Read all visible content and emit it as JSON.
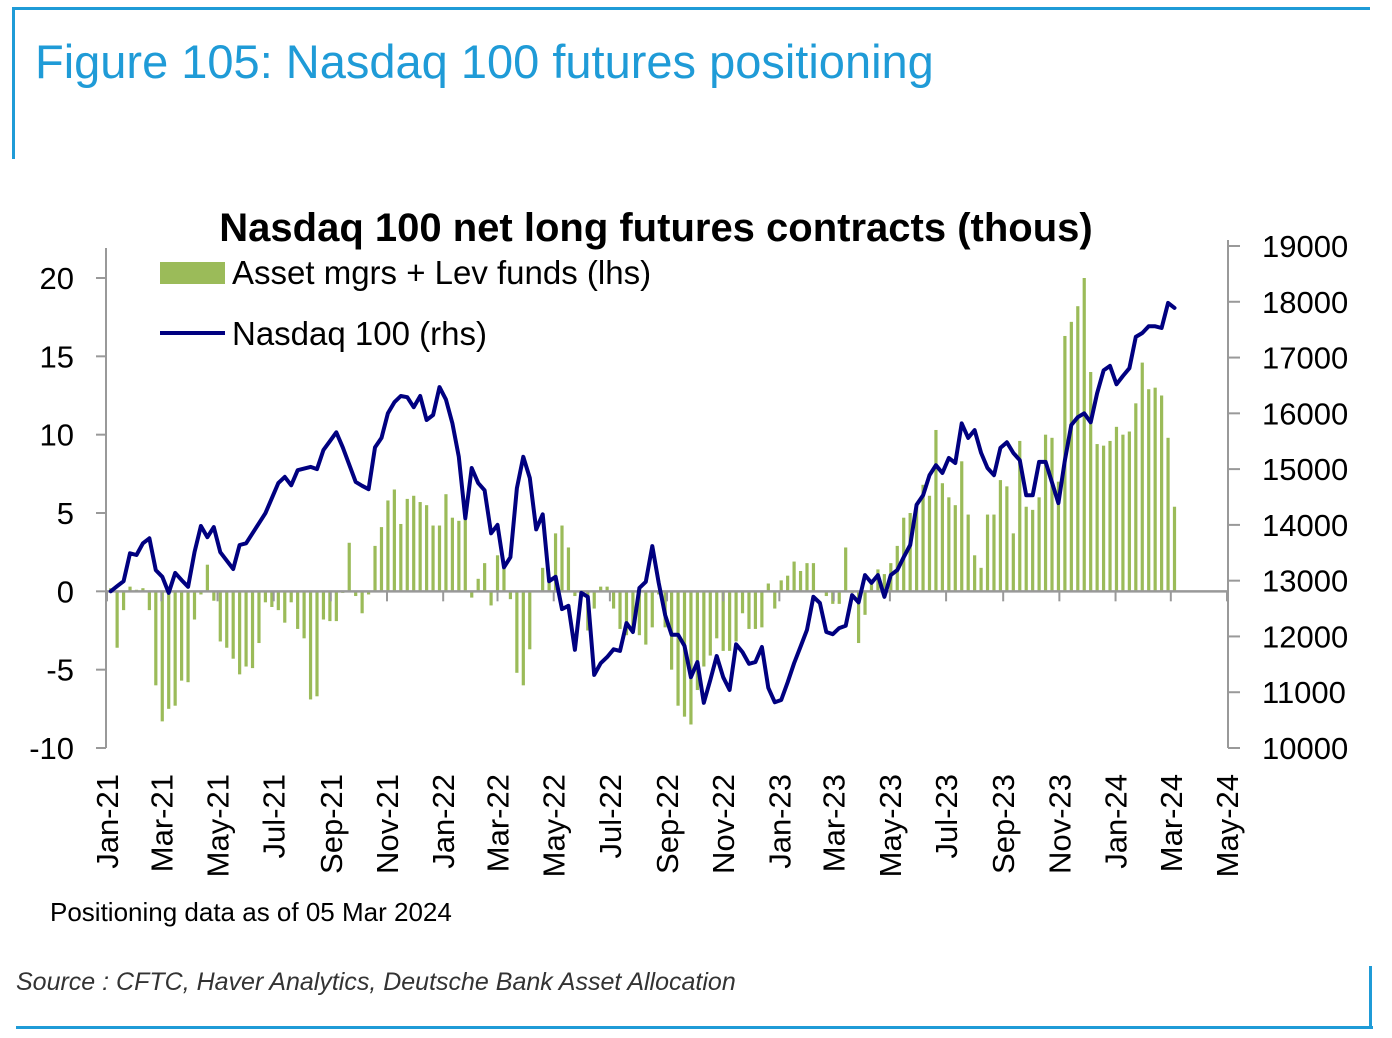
{
  "figure_title": "Figure 105: Nasdaq 100 futures positioning",
  "source": "Source : CFTC, Haver Analytics, Deutsche Bank Asset Allocation",
  "footnote": "Positioning data as of 05 Mar 2024",
  "colors": {
    "frame": "#1f9bd7",
    "bars": "#9bbb59",
    "line": "#000080",
    "axis": "#999999"
  },
  "chart_data": {
    "type": "bar+line",
    "title": "Nasdaq 100 net long futures contracts  (thous)",
    "legend_placement": "top-left",
    "grid": false,
    "y_left": {
      "ylim": [
        -10,
        20
      ],
      "ticks": [
        -10,
        -5,
        0,
        5,
        10,
        15,
        20
      ]
    },
    "y_right": {
      "ylim": [
        10000,
        19000
      ],
      "ticks": [
        10000,
        11000,
        12000,
        13000,
        14000,
        15000,
        16000,
        17000,
        18000,
        19000
      ]
    },
    "x_ticks": [
      "Jan-21",
      "Mar-21",
      "May-21",
      "Jul-21",
      "Sep-21",
      "Nov-21",
      "Jan-22",
      "Mar-22",
      "May-22",
      "Jul-22",
      "Sep-22",
      "Nov-22",
      "Jan-23",
      "Mar-23",
      "May-23",
      "Jul-23",
      "Sep-23",
      "Nov-23",
      "Jan-24",
      "Mar-24",
      "May-24"
    ],
    "x_tick_dates": [
      "2021-01-01",
      "2021-03-01",
      "2021-05-01",
      "2021-07-01",
      "2021-09-01",
      "2021-11-01",
      "2022-01-01",
      "2022-03-01",
      "2022-05-01",
      "2022-07-01",
      "2022-09-01",
      "2022-11-01",
      "2023-01-01",
      "2023-03-01",
      "2023-05-01",
      "2023-07-01",
      "2023-09-01",
      "2023-11-01",
      "2024-01-01",
      "2024-03-01",
      "2024-05-01"
    ],
    "dates": [
      "2021-01-05",
      "2021-01-12",
      "2021-01-19",
      "2021-01-26",
      "2021-02-02",
      "2021-02-09",
      "2021-02-16",
      "2021-02-23",
      "2021-03-02",
      "2021-03-09",
      "2021-03-16",
      "2021-03-23",
      "2021-03-30",
      "2021-04-06",
      "2021-04-13",
      "2021-04-20",
      "2021-04-27",
      "2021-05-04",
      "2021-05-11",
      "2021-05-18",
      "2021-05-25",
      "2021-06-01",
      "2021-06-08",
      "2021-06-15",
      "2021-06-22",
      "2021-06-29",
      "2021-07-06",
      "2021-07-13",
      "2021-07-20",
      "2021-07-27",
      "2021-08-03",
      "2021-08-10",
      "2021-08-17",
      "2021-08-24",
      "2021-08-31",
      "2021-09-07",
      "2021-09-14",
      "2021-09-21",
      "2021-09-28",
      "2021-10-05",
      "2021-10-12",
      "2021-10-19",
      "2021-10-26",
      "2021-11-02",
      "2021-11-09",
      "2021-11-16",
      "2021-11-23",
      "2021-11-30",
      "2021-12-07",
      "2021-12-14",
      "2021-12-21",
      "2021-12-28",
      "2022-01-04",
      "2022-01-11",
      "2022-01-18",
      "2022-01-25",
      "2022-02-01",
      "2022-02-08",
      "2022-02-15",
      "2022-02-22",
      "2022-03-01",
      "2022-03-08",
      "2022-03-15",
      "2022-03-22",
      "2022-03-29",
      "2022-04-05",
      "2022-04-12",
      "2022-04-19",
      "2022-04-26",
      "2022-05-03",
      "2022-05-10",
      "2022-05-17",
      "2022-05-24",
      "2022-05-31",
      "2022-06-07",
      "2022-06-14",
      "2022-06-21",
      "2022-06-28",
      "2022-07-05",
      "2022-07-12",
      "2022-07-19",
      "2022-07-26",
      "2022-08-02",
      "2022-08-09",
      "2022-08-16",
      "2022-08-23",
      "2022-08-30",
      "2022-09-06",
      "2022-09-13",
      "2022-09-20",
      "2022-09-27",
      "2022-10-04",
      "2022-10-11",
      "2022-10-18",
      "2022-10-25",
      "2022-11-01",
      "2022-11-08",
      "2022-11-15",
      "2022-11-22",
      "2022-11-29",
      "2022-12-06",
      "2022-12-13",
      "2022-12-20",
      "2022-12-27",
      "2023-01-03",
      "2023-01-10",
      "2023-01-17",
      "2023-01-24",
      "2023-01-31",
      "2023-02-07",
      "2023-02-14",
      "2023-02-21",
      "2023-02-28",
      "2023-03-07",
      "2023-03-14",
      "2023-03-21",
      "2023-03-28",
      "2023-04-04",
      "2023-04-11",
      "2023-04-18",
      "2023-04-25",
      "2023-05-02",
      "2023-05-09",
      "2023-05-16",
      "2023-05-23",
      "2023-05-30",
      "2023-06-06",
      "2023-06-13",
      "2023-06-20",
      "2023-06-27",
      "2023-07-04",
      "2023-07-11",
      "2023-07-18",
      "2023-07-25",
      "2023-08-01",
      "2023-08-08",
      "2023-08-15",
      "2023-08-22",
      "2023-08-29",
      "2023-09-05",
      "2023-09-12",
      "2023-09-19",
      "2023-09-26",
      "2023-10-03",
      "2023-10-10",
      "2023-10-17",
      "2023-10-24",
      "2023-10-31",
      "2023-11-07",
      "2023-11-14",
      "2023-11-21",
      "2023-11-28",
      "2023-12-05",
      "2023-12-12",
      "2023-12-19",
      "2023-12-26",
      "2024-01-02",
      "2024-01-09",
      "2024-01-16",
      "2024-01-23",
      "2024-01-30",
      "2024-02-06",
      "2024-02-13",
      "2024-02-20",
      "2024-02-27",
      "2024-03-05"
    ],
    "series": [
      {
        "name": "Asset mgrs + Lev funds (lhs)",
        "type": "bar",
        "axis": "left",
        "color": "#9bbb59",
        "values": [
          0.2,
          -3.6,
          -1.2,
          0.3,
          0.1,
          0.2,
          -1.2,
          -6.0,
          -8.3,
          -7.5,
          -7.3,
          -5.7,
          -5.8,
          -1.8,
          -0.2,
          1.7,
          -0.6,
          -3.2,
          -3.6,
          -4.3,
          -5.3,
          -4.8,
          -4.9,
          -3.3,
          -0.7,
          -1.0,
          -1.2,
          -2.0,
          -0.7,
          -2.4,
          -3.0,
          -6.9,
          -6.7,
          -1.8,
          -1.9,
          -1.9,
          -0.1,
          3.1,
          -0.3,
          -1.4,
          -0.2,
          2.9,
          4.1,
          5.8,
          6.5,
          4.3,
          5.9,
          6.1,
          5.7,
          5.5,
          4.2,
          4.2,
          6.2,
          4.7,
          4.5,
          4.6,
          -0.4,
          0.8,
          1.8,
          -0.9,
          2.3,
          1.5,
          -0.5,
          -5.2,
          -6.0,
          -3.7,
          0.0,
          1.5,
          0.6,
          3.7,
          4.2,
          2.8,
          -0.3,
          -0.4,
          -2.5,
          -1.1,
          0.3,
          0.3,
          -1.1,
          -2.4,
          -2.8,
          -2.4,
          -2.8,
          -3.4,
          -2.3,
          -0.2,
          -2.3,
          -5.0,
          -7.3,
          -8.0,
          -8.5,
          -6.3,
          -4.8,
          -4.1,
          -3.0,
          -3.8,
          -3.8,
          -3.2,
          -1.4,
          -2.4,
          -2.4,
          -2.3,
          0.5,
          -1.1,
          0.7,
          1.0,
          1.9,
          1.3,
          1.8,
          1.8,
          0.0,
          -0.3,
          -0.8,
          -0.8,
          2.8,
          -0.1,
          -3.3,
          -1.5,
          0.5,
          1.4,
          1.1,
          1.8,
          2.9,
          4.7,
          5.0,
          5.6,
          6.8,
          6.1,
          10.3,
          6.9,
          6.0,
          5.5,
          8.3,
          4.9,
          2.3,
          1.5,
          4.9,
          4.9,
          7.1,
          6.7,
          3.7,
          9.6,
          5.4,
          5.2,
          6.0,
          10.0,
          9.8,
          7.0,
          16.3,
          17.2,
          18.2,
          20.0,
          14.0,
          9.4,
          9.3,
          9.6,
          10.5,
          10.0,
          10.2,
          12.0,
          14.6,
          12.9,
          13.0,
          12.5,
          9.8,
          5.4
        ]
      },
      {
        "name": "Nasdaq 100 (rhs)",
        "type": "line",
        "axis": "right",
        "color": "#000080",
        "values": [
          12810,
          12900,
          12990,
          13490,
          13460,
          13670,
          13760,
          13190,
          13070,
          12780,
          13140,
          13010,
          12890,
          13510,
          13980,
          13780,
          13960,
          13510,
          13360,
          13210,
          13640,
          13670,
          13850,
          14030,
          14210,
          14480,
          14750,
          14860,
          14710,
          14980,
          15010,
          15040,
          15000,
          15340,
          15500,
          15660,
          15390,
          15080,
          14770,
          14700,
          14640,
          15390,
          15560,
          16000,
          16200,
          16310,
          16290,
          16110,
          16310,
          15880,
          15970,
          16470,
          16250,
          15820,
          15220,
          14120,
          15020,
          14750,
          14620,
          13850,
          14000,
          13240,
          13420,
          14660,
          15220,
          14840,
          13920,
          14190,
          12990,
          13070,
          12490,
          12550,
          11760,
          12780,
          12710,
          11310,
          11520,
          11630,
          11770,
          11740,
          12240,
          12080,
          12870,
          12980,
          13620,
          12960,
          12380,
          12030,
          12030,
          11830,
          11270,
          11540,
          10810,
          11220,
          11650,
          11270,
          11040,
          11860,
          11720,
          11510,
          11540,
          11810,
          11080,
          10820,
          10860,
          11180,
          11520,
          11820,
          12120,
          12710,
          12600,
          12080,
          12040,
          12150,
          12190,
          12740,
          12610,
          13100,
          12960,
          13100,
          12710,
          13100,
          13190,
          13420,
          13640,
          14360,
          14530,
          14890,
          15070,
          14930,
          15200,
          15110,
          15820,
          15560,
          15700,
          15290,
          15020,
          14890,
          15380,
          15480,
          15290,
          15160,
          14530,
          14530,
          15130,
          15130,
          14760,
          14390,
          15160,
          15790,
          15930,
          16000,
          15840,
          16360,
          16770,
          16850,
          16520,
          16670,
          16810,
          17370,
          17440,
          17560,
          17560,
          17530,
          17980,
          17890
        ]
      }
    ]
  }
}
